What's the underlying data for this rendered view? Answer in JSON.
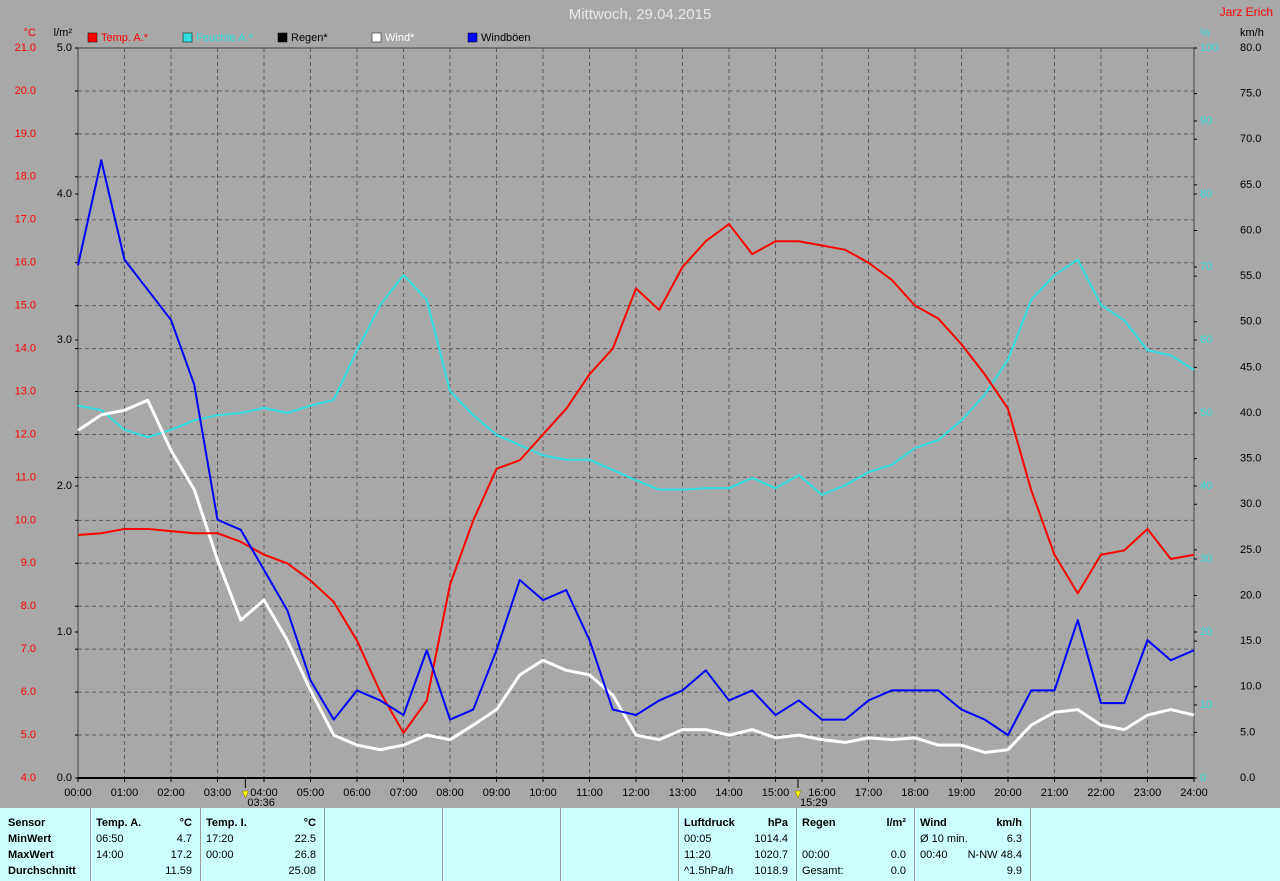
{
  "chart_data": {
    "type": "line",
    "title": "Mittwoch, 29.04.2015",
    "author": "Jarz Erich",
    "x": [
      0,
      0.5,
      1,
      1.5,
      2,
      2.5,
      3,
      3.5,
      4,
      4.5,
      5,
      5.5,
      6,
      6.5,
      7,
      7.5,
      8,
      8.5,
      9,
      9.5,
      10,
      10.5,
      11,
      11.5,
      12,
      12.5,
      13,
      13.5,
      14,
      14.5,
      15,
      15.5,
      16,
      16.5,
      17,
      17.5,
      18,
      18.5,
      19,
      19.5,
      20,
      20.5,
      21,
      21.5,
      22,
      22.5,
      23,
      23.5,
      24
    ],
    "xlim": [
      0,
      24
    ],
    "xticks": [
      {
        "value": 0,
        "label": "00:00"
      },
      {
        "value": 1,
        "label": "01:00"
      },
      {
        "value": 2,
        "label": "02:00"
      },
      {
        "value": 3,
        "label": "03:00"
      },
      {
        "value": 4,
        "label": "04:00"
      },
      {
        "value": 5,
        "label": "05:00"
      },
      {
        "value": 6,
        "label": "06:00"
      },
      {
        "value": 7,
        "label": "07:00"
      },
      {
        "value": 8,
        "label": "08:00"
      },
      {
        "value": 9,
        "label": "09:00"
      },
      {
        "value": 10,
        "label": "10:00"
      },
      {
        "value": 11,
        "label": "11:00"
      },
      {
        "value": 12,
        "label": "12:00"
      },
      {
        "value": 13,
        "label": "13:00"
      },
      {
        "value": 14,
        "label": "14:00"
      },
      {
        "value": 15,
        "label": "15:00"
      },
      {
        "value": 16,
        "label": "16:00"
      },
      {
        "value": 17,
        "label": "17:00"
      },
      {
        "value": 18,
        "label": "18:00"
      },
      {
        "value": 19,
        "label": "19:00"
      },
      {
        "value": 20,
        "label": "20:00"
      },
      {
        "value": 21,
        "label": "21:00"
      },
      {
        "value": 22,
        "label": "22:00"
      },
      {
        "value": 23,
        "label": "23:00"
      },
      {
        "value": 24,
        "label": "24:00"
      }
    ],
    "markers": [
      {
        "value": 3.6,
        "label": "03:36"
      },
      {
        "value": 15.4833,
        "label": "15:29"
      }
    ],
    "grid": true,
    "axes": [
      {
        "unit": "°C",
        "color": "#ff0000",
        "lim": [
          4,
          21
        ],
        "ticks": [
          {
            "value": 4,
            "label": "4.0"
          },
          {
            "value": 5,
            "label": "5.0"
          },
          {
            "value": 6,
            "label": "6.0"
          },
          {
            "value": 7,
            "label": "7.0"
          },
          {
            "value": 8,
            "label": "8.0"
          },
          {
            "value": 9,
            "label": "9.0"
          },
          {
            "value": 10,
            "label": "10.0"
          },
          {
            "value": 11,
            "label": "11.0"
          },
          {
            "value": 12,
            "label": "12.0"
          },
          {
            "value": 13,
            "label": "13.0"
          },
          {
            "value": 14,
            "label": "14.0"
          },
          {
            "value": 15,
            "label": "15.0"
          },
          {
            "value": 16,
            "label": "16.0"
          },
          {
            "value": 17,
            "label": "17.0"
          },
          {
            "value": 18,
            "label": "18.0"
          },
          {
            "value": 19,
            "label": "19.0"
          },
          {
            "value": 20,
            "label": "20.0"
          },
          {
            "value": 21,
            "label": "21.0"
          }
        ]
      },
      {
        "unit": "l/m²",
        "color": "#000000",
        "lim": [
          0,
          5
        ],
        "ticks": [
          {
            "value": 0,
            "label": "0.0"
          },
          {
            "value": 1,
            "label": "1.0"
          },
          {
            "value": 2,
            "label": "2.0"
          },
          {
            "value": 3,
            "label": "3.0"
          },
          {
            "value": 4,
            "label": "4.0"
          },
          {
            "value": 5,
            "label": "5.0"
          }
        ]
      },
      {
        "unit": "%",
        "color": "#30e0e0",
        "lim": [
          0,
          100
        ],
        "ticks": [
          0,
          10,
          20,
          30,
          40,
          50,
          60,
          70,
          80,
          90,
          100
        ]
      },
      {
        "unit": "km/h",
        "color": "#000000",
        "lim": [
          0,
          80
        ],
        "ticks": [
          {
            "value": 0,
            "label": "0.0"
          },
          {
            "value": 5,
            "label": "5.0"
          },
          {
            "value": 10,
            "label": "10.0"
          },
          {
            "value": 15,
            "label": "15.0"
          },
          {
            "value": 20,
            "label": "20.0"
          },
          {
            "value": 25,
            "label": "25.0"
          },
          {
            "value": 30,
            "label": "30.0"
          },
          {
            "value": 35,
            "label": "35.0"
          },
          {
            "value": 40,
            "label": "40.0"
          },
          {
            "value": 45,
            "label": "45.0"
          },
          {
            "value": 50,
            "label": "50.0"
          },
          {
            "value": 55,
            "label": "55.0"
          },
          {
            "value": 60,
            "label": "60.0"
          },
          {
            "value": 65,
            "label": "65.0"
          },
          {
            "value": 70,
            "label": "70.0"
          },
          {
            "value": 75,
            "label": "75.0"
          },
          {
            "value": 80,
            "label": "80.0"
          }
        ]
      }
    ],
    "series": [
      {
        "name": "Temp. A.*",
        "color": "#ff0000",
        "axis": 0,
        "values": [
          9.66,
          9.7,
          9.8,
          9.8,
          9.75,
          9.7,
          9.7,
          9.5,
          9.2,
          9.0,
          8.6,
          8.1,
          7.2,
          6.0,
          5.05,
          5.8,
          8.5,
          10.0,
          11.2,
          11.4,
          12.0,
          12.6,
          13.4,
          14.0,
          15.4,
          14.9,
          15.9,
          16.5,
          16.9,
          16.2,
          16.5,
          16.5,
          16.4,
          16.3,
          16.0,
          15.6,
          15.0,
          14.7,
          14.1,
          13.4,
          12.6,
          10.7,
          9.2,
          8.3,
          9.2,
          9.3,
          9.8,
          9.1,
          9.2
        ]
      },
      {
        "name": "Feuchte A.*",
        "color": "#30e0e0",
        "axis": 2,
        "values": [
          51,
          50.4,
          47.7,
          46.7,
          47.7,
          49,
          49.7,
          50,
          50.7,
          50,
          51,
          51.8,
          58.6,
          64.8,
          68.9,
          65.5,
          53,
          49.7,
          47,
          45.6,
          44.2,
          43.6,
          43.6,
          42.2,
          40.8,
          39.5,
          39.5,
          39.7,
          39.7,
          41.1,
          39.7,
          41.5,
          38.8,
          40.1,
          41.9,
          42.9,
          45.2,
          46.3,
          49,
          52.5,
          57.3,
          65.5,
          68.9,
          71,
          64.8,
          62.7,
          58.6,
          57.9,
          55.9
        ]
      },
      {
        "name": "Regen*",
        "color": "#000000",
        "axis": 1,
        "values": [
          0,
          0,
          0,
          0,
          0,
          0,
          0,
          0,
          0,
          0,
          0,
          0,
          0,
          0,
          0,
          0,
          0,
          0,
          0,
          0,
          0,
          0,
          0,
          0,
          0,
          0,
          0,
          0,
          0,
          0,
          0,
          0,
          0,
          0,
          0,
          0,
          0,
          0,
          0,
          0,
          0,
          0,
          0,
          0,
          0,
          0,
          0,
          0,
          0
        ]
      },
      {
        "name": "Wind*",
        "color": "#ffffff",
        "axis": 3,
        "values": [
          38.1,
          39.8,
          40.3,
          41.4,
          35.9,
          31.6,
          23.9,
          17.3,
          19.5,
          15.1,
          9.6,
          4.7,
          3.6,
          3.1,
          3.6,
          4.7,
          4.2,
          5.8,
          7.5,
          11.3,
          12.9,
          11.8,
          11.3,
          9.1,
          4.7,
          4.2,
          5.3,
          5.3,
          4.7,
          5.3,
          4.4,
          4.7,
          4.2,
          3.9,
          4.4,
          4.2,
          4.4,
          3.6,
          3.6,
          2.8,
          3.1,
          5.8,
          7.2,
          7.5,
          5.8,
          5.3,
          6.9,
          7.5,
          6.9
        ]
      },
      {
        "name": "Windböen",
        "color": "#0000ff",
        "axis": 3,
        "values": [
          56.2,
          67.7,
          56.8,
          53.5,
          50.2,
          43.1,
          28.3,
          27.2,
          22.8,
          18.4,
          10.7,
          6.4,
          9.6,
          8.5,
          6.9,
          14.0,
          6.4,
          7.5,
          14.0,
          21.7,
          19.5,
          20.6,
          15.1,
          7.5,
          6.9,
          8.5,
          9.6,
          11.8,
          8.5,
          9.6,
          6.9,
          8.5,
          6.4,
          6.4,
          8.5,
          9.6,
          9.6,
          9.6,
          7.5,
          6.4,
          4.7,
          9.6,
          9.6,
          17.3,
          8.2,
          8.2,
          15.1,
          12.9,
          14.0
        ]
      }
    ]
  },
  "stats": {
    "row_labels": [
      "Sensor",
      "MinWert",
      "MaxWert",
      "Durchschnitt"
    ],
    "panels": [
      {
        "name": "Temp. A.",
        "unit": "°C",
        "rows": {
          "min": {
            "time": "06:50",
            "value": "4.7"
          },
          "max": {
            "time": "14:00",
            "value": "17.2"
          },
          "avg": {
            "value": "11.59"
          }
        }
      },
      {
        "name": "Temp. I.",
        "unit": "°C",
        "rows": {
          "min": {
            "time": "17:20",
            "value": "22.5"
          },
          "max": {
            "time": "00:00",
            "value": "26.8"
          },
          "avg": {
            "value": "25.08"
          }
        }
      },
      {
        "name": "Luftdruck",
        "unit": "hPa",
        "rows": {
          "min": {
            "time": "00:05",
            "value": "1014.4"
          },
          "max": {
            "time": "11:20",
            "value": "1020.7"
          },
          "avg": {
            "time": "^1.5hPa/h",
            "value": "1018.9"
          }
        }
      },
      {
        "name": "Regen",
        "unit": "l/m²",
        "rows": {
          "max": {
            "time": "00:00",
            "value": "0.0"
          },
          "avg": {
            "time": "Gesamt:",
            "value": "0.0"
          }
        }
      },
      {
        "name": "Wind",
        "unit": "km/h",
        "rows": {
          "min": {
            "time": "Ø 10 min.",
            "value": "6.3"
          },
          "max": {
            "time": "00:40",
            "value": "N-NW 48.4"
          },
          "avg": {
            "value": "9.9"
          }
        }
      }
    ]
  }
}
